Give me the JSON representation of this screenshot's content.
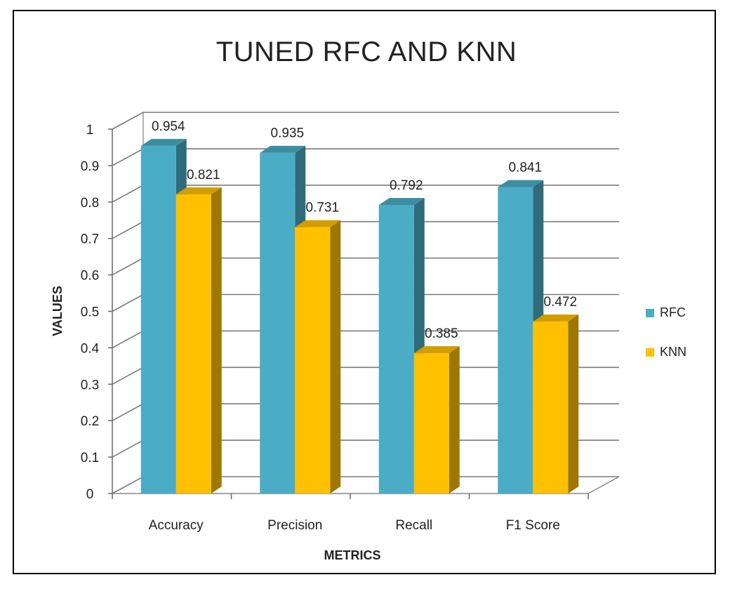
{
  "chart_data": {
    "type": "bar",
    "title": "TUNED RFC AND KNN",
    "xlabel": "METRICS",
    "ylabel": "VALUES",
    "categories": [
      "Accuracy",
      "Precision",
      "Recall",
      "F1 Score"
    ],
    "series": [
      {
        "name": "RFC",
        "values": [
          0.954,
          0.935,
          0.792,
          0.841
        ],
        "color": "#4BACC6"
      },
      {
        "name": "KNN",
        "values": [
          0.821,
          0.731,
          0.385,
          0.472
        ],
        "color": "#FFC000"
      }
    ],
    "data_labels": [
      [
        "0.954",
        "0.935",
        "0.792",
        "0.841"
      ],
      [
        "0.821",
        "0.731",
        "0.385",
        "0.472"
      ]
    ],
    "ylim": [
      0,
      1
    ],
    "yticks": [
      0,
      0.1,
      0.2,
      0.3,
      0.4,
      0.5,
      0.6,
      0.7,
      0.8,
      0.9,
      1
    ],
    "ytick_labels": [
      "0",
      "0.1",
      "0.2",
      "0.3",
      "0.4",
      "0.5",
      "0.6",
      "0.7",
      "0.8",
      "0.9",
      "1"
    ],
    "grid": true,
    "legend_position": "right",
    "style": "3d-clustered-column"
  }
}
